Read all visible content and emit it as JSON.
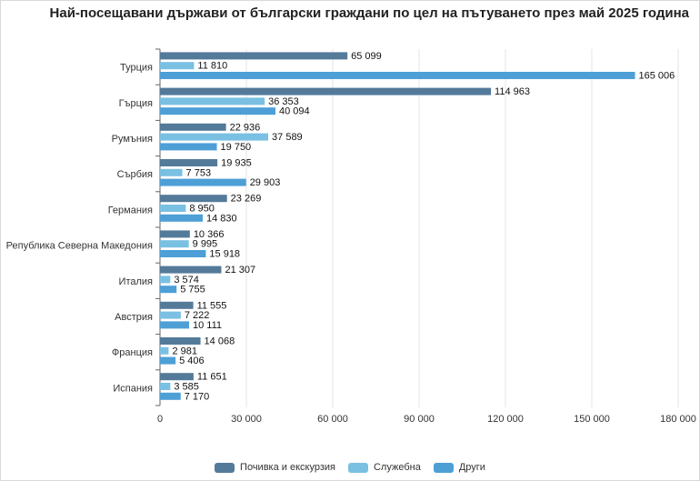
{
  "title": "Най-посещавани държави от български граждани по цел на пътуването през май 2025 година",
  "colors": {
    "series": [
      "#547a99",
      "#7ac0e2",
      "#4d9fd6"
    ],
    "grid": "#e6e6e6",
    "axis": "#666666",
    "label": "#111111"
  },
  "chart_data": {
    "type": "bar",
    "orientation": "horizontal",
    "categories": [
      "Турция",
      "Гърция",
      "Румъния",
      "Сърбия",
      "Германия",
      "Република Северна Македония",
      "Италия",
      "Австрия",
      "Франция",
      "Испания"
    ],
    "series": [
      {
        "name": "Почивка и екскурзия",
        "values": [
          65099,
          114963,
          22936,
          19935,
          23269,
          10366,
          21307,
          11555,
          14068,
          11651
        ]
      },
      {
        "name": "Служебна",
        "values": [
          11810,
          36353,
          37589,
          7753,
          8950,
          9995,
          3574,
          7222,
          2981,
          3585
        ]
      },
      {
        "name": "Други",
        "values": [
          165006,
          40094,
          19750,
          29903,
          14830,
          15918,
          5755,
          10111,
          5406,
          7170
        ]
      }
    ],
    "xlim": [
      0,
      180000
    ],
    "xticks": [
      0,
      30000,
      60000,
      90000,
      120000,
      150000,
      180000
    ],
    "xtick_labels": [
      "0",
      "30 000",
      "60 000",
      "90 000",
      "120 000",
      "150 000",
      "180 000"
    ],
    "grid": true,
    "legend_position": "bottom"
  }
}
